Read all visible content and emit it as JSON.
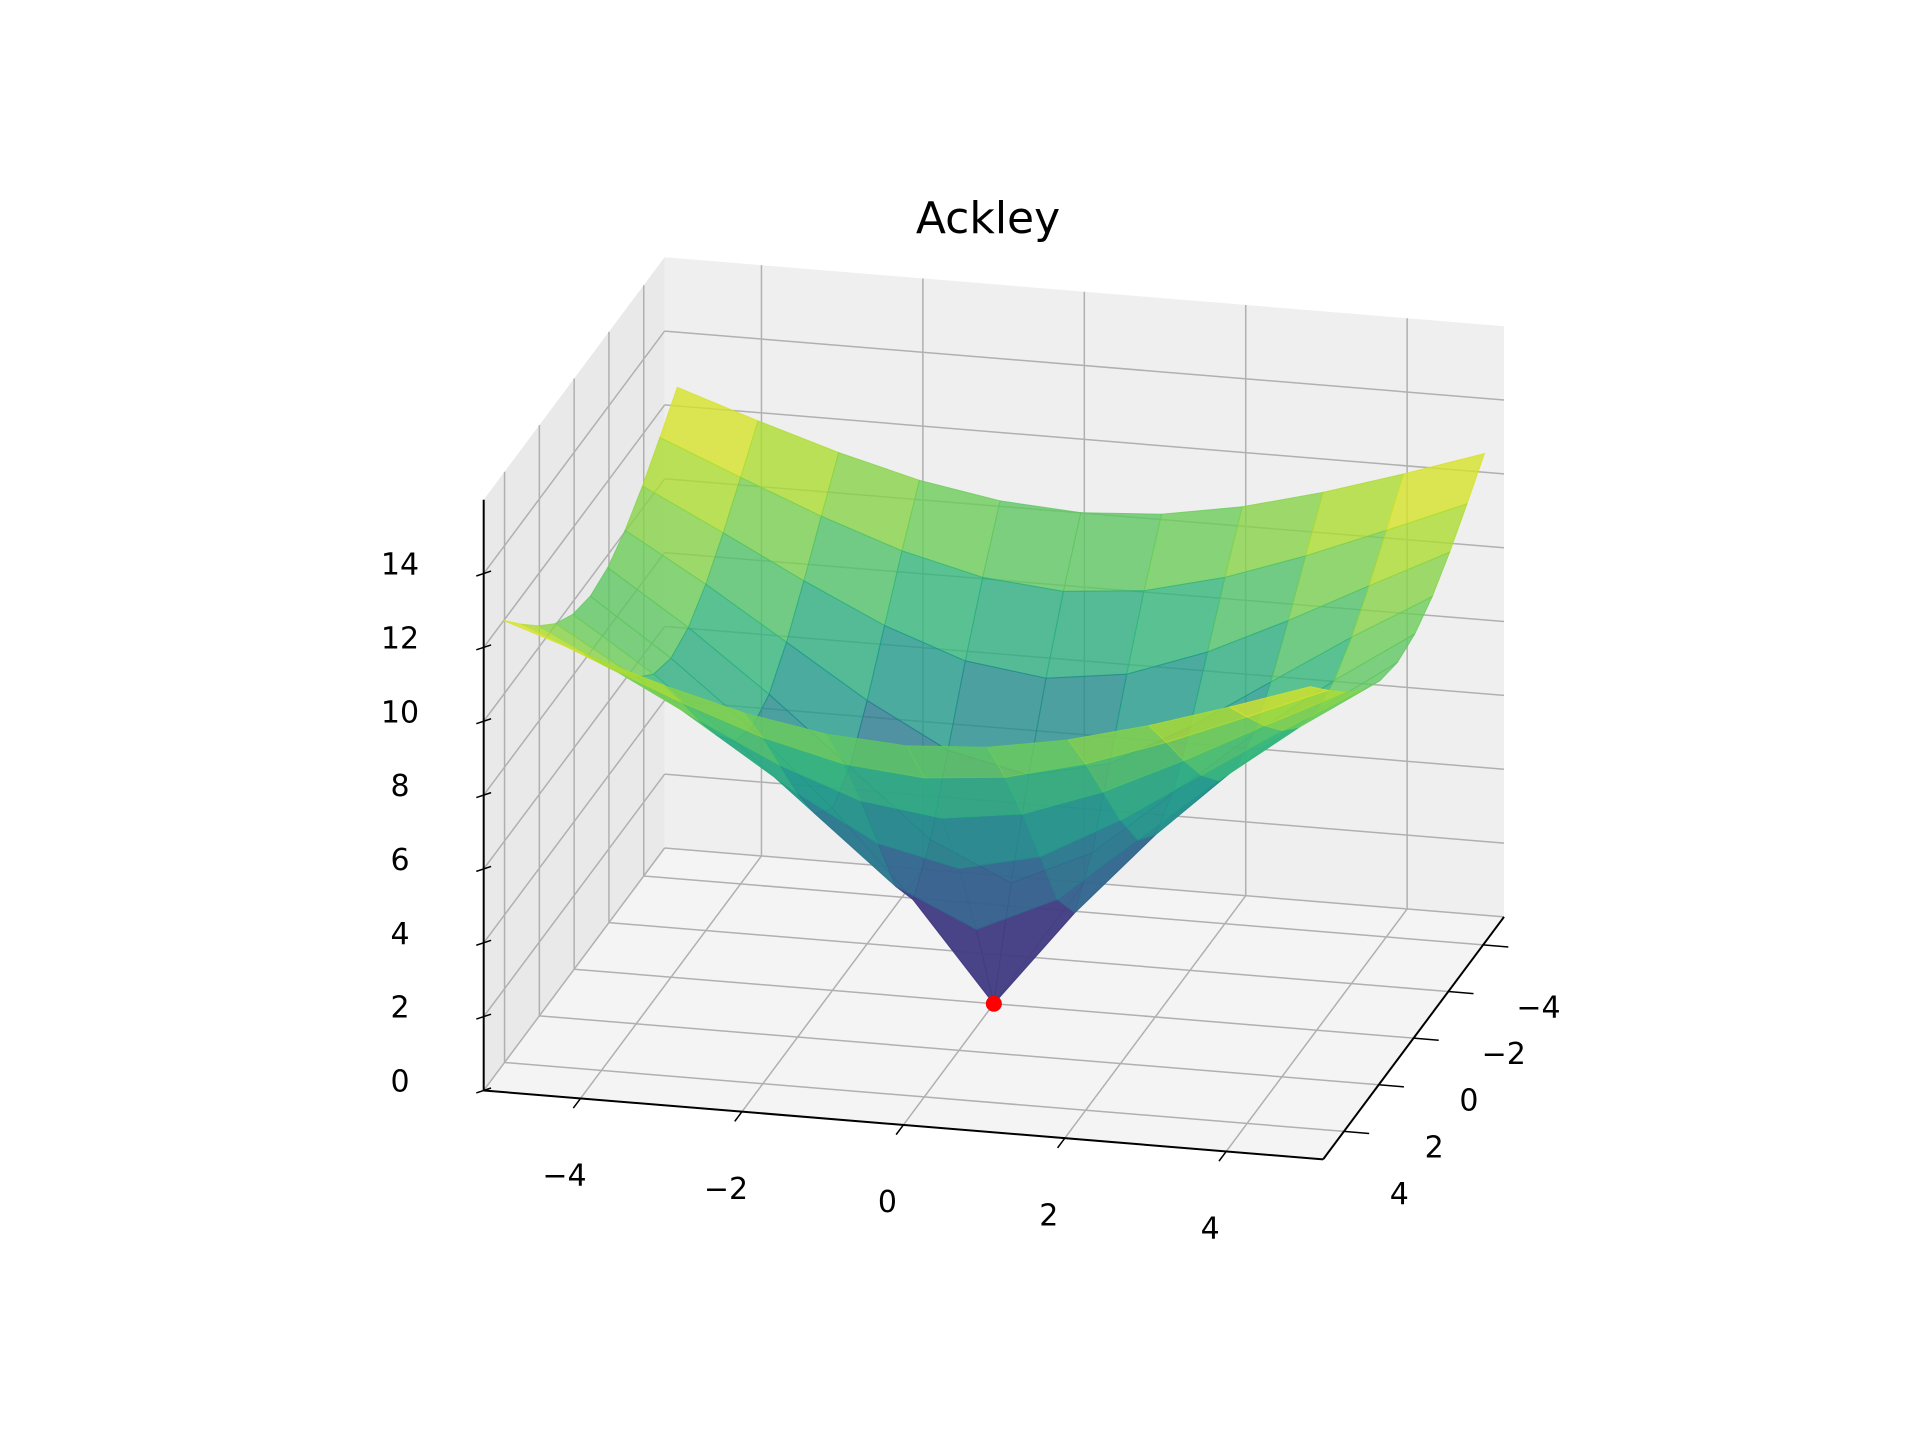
{
  "chart_data": {
    "type": "surface3d",
    "title": "Ackley",
    "x": [
      -5,
      -4,
      -3,
      -2,
      -1,
      0,
      1,
      2,
      3,
      4,
      5
    ],
    "y": [
      -5,
      -4,
      -3,
      -2,
      -1,
      0,
      1,
      2,
      3,
      4,
      5
    ],
    "z": [
      [
        12.64,
        11.91,
        11.23,
        10.66,
        10.28,
        10.14,
        10.28,
        10.66,
        11.23,
        11.91,
        12.64
      ],
      [
        11.91,
        11.01,
        10.14,
        9.38,
        8.84,
        8.64,
        8.84,
        9.38,
        10.14,
        11.01,
        11.91
      ],
      [
        11.23,
        10.14,
        9.02,
        7.99,
        7.21,
        6.92,
        7.21,
        7.99,
        9.02,
        10.14,
        11.23
      ],
      [
        10.66,
        9.38,
        7.99,
        6.59,
        5.42,
        4.93,
        5.42,
        6.59,
        7.99,
        9.38,
        10.66
      ],
      [
        10.28,
        8.84,
        7.21,
        5.42,
        3.63,
        2.64,
        3.63,
        5.42,
        7.21,
        8.84,
        10.28
      ],
      [
        10.14,
        8.64,
        6.92,
        4.93,
        2.64,
        0,
        2.64,
        4.93,
        6.92,
        8.64,
        10.14
      ],
      [
        10.28,
        8.84,
        7.21,
        5.42,
        3.63,
        2.64,
        3.63,
        5.42,
        7.21,
        8.84,
        10.28
      ],
      [
        10.66,
        9.38,
        7.99,
        6.59,
        5.42,
        4.93,
        5.42,
        6.59,
        7.99,
        9.38,
        10.66
      ],
      [
        11.23,
        10.14,
        9.02,
        7.99,
        7.21,
        6.92,
        7.21,
        7.99,
        9.02,
        10.14,
        11.23
      ],
      [
        11.91,
        11.01,
        10.14,
        9.38,
        8.84,
        8.64,
        8.84,
        9.38,
        10.14,
        11.01,
        11.91
      ],
      [
        12.64,
        11.91,
        11.23,
        10.66,
        10.28,
        10.14,
        10.28,
        10.66,
        11.23,
        11.91,
        12.64
      ]
    ],
    "colormap": "viridis",
    "alpha": 0.8,
    "xlim": [
      -5.2,
      5.2
    ],
    "ylim": [
      -5.2,
      5.2
    ],
    "zlim": [
      0,
      16
    ],
    "xticks": [
      {
        "value": -4,
        "label": "−4"
      },
      {
        "value": -2,
        "label": "−2"
      },
      0,
      2,
      4
    ],
    "yticks": [
      {
        "value": -4,
        "label": "−4"
      },
      {
        "value": -2,
        "label": "−2"
      },
      0,
      2,
      4
    ],
    "zticks": [
      0,
      2,
      4,
      6,
      8,
      10,
      12,
      14
    ],
    "grid": true,
    "minimum": {
      "x": 0,
      "y": 0,
      "z": 0,
      "color": "red"
    }
  }
}
